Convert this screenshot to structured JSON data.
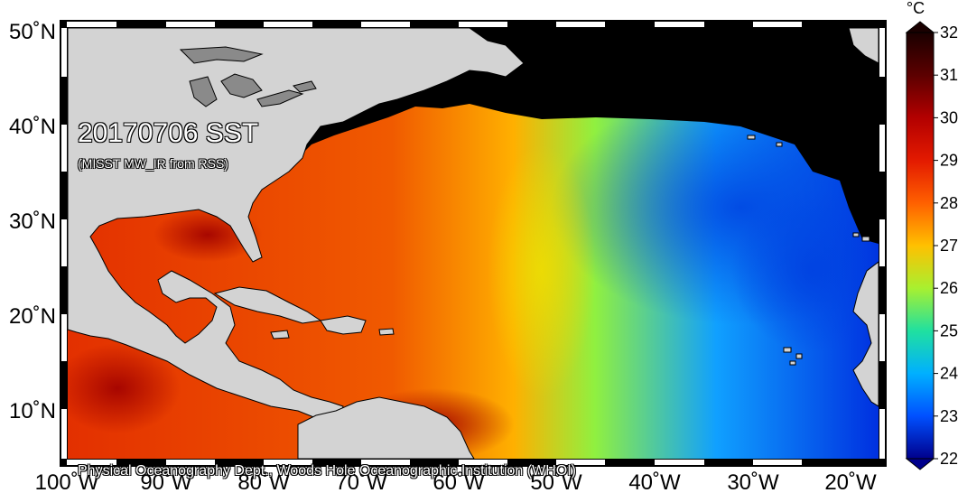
{
  "map": {
    "title": "20170706 SST",
    "subtitle": "(MISST MW_IR from RSS)",
    "credit": "Physical Oceanography Dept., Woods Hole Oceanographic Institution (WHOI)",
    "lat_labels": [
      "50˚N",
      "40˚N",
      "30˚N",
      "20˚N",
      "10˚N"
    ],
    "lon_labels": [
      "100˚W",
      "90˚W",
      "80˚W",
      "70˚W",
      "60˚W",
      "50˚W",
      "40˚W",
      "30˚W",
      "20˚W"
    ],
    "colors": {
      "land": "#d3d3d3",
      "lake": "#8a8a8a",
      "no_data": "#000000"
    }
  },
  "colorbar": {
    "unit": "°C",
    "ticks": [
      "32",
      "31",
      "30",
      "29",
      "28",
      "27",
      "26",
      "25",
      "24",
      "23",
      "22"
    ],
    "range": [
      22,
      32
    ],
    "stops": [
      "#1a0000",
      "#5c0000",
      "#b30000",
      "#e31a00",
      "#ff6000",
      "#ffa000",
      "#f0e000",
      "#a0ff30",
      "#20e0a0",
      "#00b0ff",
      "#0050ff",
      "#0000a0"
    ]
  }
}
